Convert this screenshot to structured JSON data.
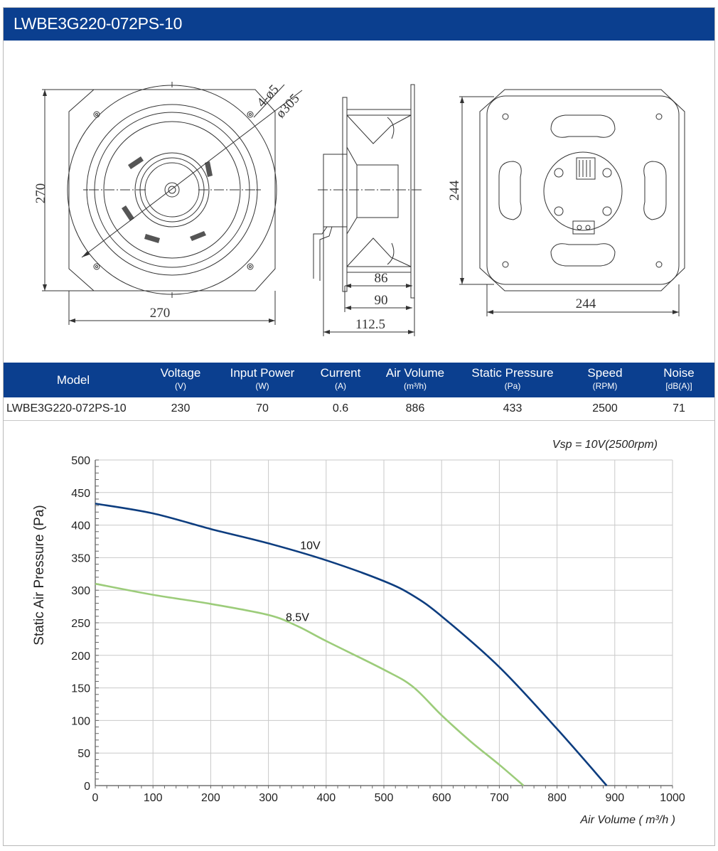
{
  "header": {
    "title": "LWBE3G220-072PS-10"
  },
  "drawings": {
    "front": {
      "width_dim": "270",
      "height_dim": "270",
      "hole_note": "4-ø5",
      "diameter_note": "ø305"
    },
    "side": {
      "dim_86": "86",
      "dim_90": "90",
      "dim_112": "112.5"
    },
    "back": {
      "width_dim": "244",
      "height_dim": "244"
    }
  },
  "spec_table": {
    "columns": [
      {
        "label": "Model",
        "unit": ""
      },
      {
        "label": "Voltage",
        "unit": "(V)"
      },
      {
        "label": "Input Power",
        "unit": "(W)"
      },
      {
        "label": "Current",
        "unit": "(A)"
      },
      {
        "label": "Air Volume",
        "unit": "(m³/h)"
      },
      {
        "label": "Static Pressure",
        "unit": "(Pa)"
      },
      {
        "label": "Speed",
        "unit": "(RPM)"
      },
      {
        "label": "Noise",
        "unit": "[dB(A)]"
      }
    ],
    "row": [
      "LWBE3G220-072PS-10",
      "230",
      "70",
      "0.6",
      "886",
      "433",
      "2500",
      "71"
    ]
  },
  "colors": {
    "brand_blue": "#0b3f8f",
    "curve_10v": "#0d3d7f",
    "curve_85v": "#9ccc7a",
    "grid": "#c9c9c9"
  },
  "chart_data": {
    "type": "line",
    "annotation": "Vsp = 10V(2500rpm)",
    "xlabel": "Air Volume ( m³/h )",
    "ylabel": "Static Air Pressure  (Pa)",
    "xlim": [
      0,
      1000
    ],
    "ylim": [
      0,
      500
    ],
    "xticks": [
      0,
      100,
      200,
      300,
      400,
      500,
      600,
      700,
      800,
      900,
      1000
    ],
    "yticks": [
      0,
      50,
      100,
      150,
      200,
      250,
      300,
      350,
      400,
      450,
      500
    ],
    "grid": true,
    "series": [
      {
        "name": "10V",
        "color": "#0d3d7f",
        "x": [
          0,
          100,
          200,
          300,
          400,
          500,
          550,
          600,
          700,
          800,
          886
        ],
        "y": [
          433,
          418,
          394,
          372,
          346,
          314,
          292,
          260,
          182,
          87,
          0
        ]
      },
      {
        "name": "8.5V",
        "color": "#9ccc7a",
        "x": [
          0,
          100,
          200,
          300,
          350,
          400,
          500,
          550,
          600,
          650,
          700,
          742
        ],
        "y": [
          310,
          293,
          279,
          262,
          245,
          222,
          178,
          152,
          108,
          68,
          32,
          0
        ]
      }
    ],
    "series_label_pos": [
      {
        "x": 355,
        "y": 363
      },
      {
        "x": 330,
        "y": 253
      }
    ]
  }
}
